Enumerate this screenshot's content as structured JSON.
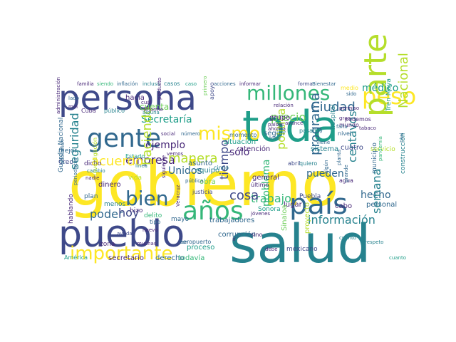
{
  "palette": {
    "yellow": "#fde725",
    "lime": "#b5de2b",
    "green": "#6ece58",
    "sea": "#35b779",
    "teal": "#1f9e89",
    "cyan": "#26828e",
    "blue": "#31688e",
    "indigo": "#3e4989",
    "violet": "#482878",
    "dark": "#440154"
  },
  "words": [
    {
      "text": "gobierno",
      "color": "#fde725"
    },
    {
      "text": "salud",
      "color": "#26828e"
    },
    {
      "text": "persona",
      "color": "#3e4989"
    },
    {
      "text": "toda",
      "color": "#1f9e89"
    },
    {
      "text": "pueblo",
      "color": "#3e4989"
    },
    {
      "text": "gente",
      "color": "#31688e"
    },
    {
      "text": "millones",
      "color": "#35b779"
    },
    {
      "text": "peso",
      "color": "#fde725"
    },
    {
      "text": "mismo",
      "color": "#fde725"
    },
    {
      "text": "años",
      "color": "#35b779"
    },
    {
      "text": "país",
      "color": "#31688e"
    },
    {
      "text": "parte",
      "color": "#b5de2b"
    },
    {
      "text": "importante",
      "color": "#fde725"
    },
    {
      "text": "bien",
      "color": "#31688e"
    },
    {
      "text": "Ciudad",
      "color": "#31688e"
    },
    {
      "text": "médico",
      "color": "#1f9e89"
    },
    {
      "text": "Secretaría",
      "color": "#1f9e89"
    },
    {
      "text": "ejemplo",
      "color": "#482878"
    },
    {
      "text": "empresa",
      "color": "#482878"
    },
    {
      "text": "manera",
      "color": "#b5de2b"
    },
    {
      "text": "haciendo",
      "color": "#b5de2b"
    },
    {
      "text": "Unidos",
      "color": "#31688e"
    },
    {
      "text": "tiempo",
      "color": "#3e4989"
    },
    {
      "text": "sólo",
      "color": "#482878"
    },
    {
      "text": "política",
      "color": "#b5de2b"
    },
    {
      "text": "precio",
      "color": "#6ece58"
    },
    {
      "text": "programa",
      "color": "#31688e"
    },
    {
      "text": "pueden",
      "color": "#31688e"
    },
    {
      "text": "centavos",
      "color": "#26828e"
    },
    {
      "text": "Nacional",
      "color": "#b5de2b"
    },
    {
      "text": "trabajo",
      "color": "#35b779"
    },
    {
      "text": "cosa",
      "color": "#3e4989"
    },
    {
      "text": "problema",
      "color": "#35b779"
    },
    {
      "text": "información",
      "color": "#26828e"
    },
    {
      "text": "hecho",
      "color": "#31688e"
    },
    {
      "text": "semana",
      "color": "#26828e"
    },
    {
      "text": "seguridad",
      "color": "#26828e"
    },
    {
      "text": "poder",
      "color": "#31688e"
    },
    {
      "text": "hoy",
      "color": "#3e4989"
    },
    {
      "text": "acuerdo",
      "color": "#fde725"
    },
    {
      "text": "cuenta",
      "color": "#6ece58"
    },
    {
      "text": "hacia",
      "color": "#482878"
    },
    {
      "text": "dinero",
      "color": "#482878"
    },
    {
      "text": "proceso",
      "color": "#1f9e89"
    },
    {
      "text": "trabajadores",
      "color": "#31688e"
    },
    {
      "text": "corrupción",
      "color": "#31688e"
    },
    {
      "text": "secretario",
      "color": "#482878"
    },
    {
      "text": "derecho",
      "color": "#31688e"
    },
    {
      "text": "todavía",
      "color": "#35b779"
    },
    {
      "text": "América",
      "color": "#1f9e89"
    },
    {
      "text": "Guardia Nacional",
      "color": "#31688e"
    },
    {
      "text": "construcción",
      "color": "#26828e"
    },
    {
      "text": "municipio",
      "color": "#31688e"
    },
    {
      "text": "servicio",
      "color": "#b5de2b"
    },
    {
      "text": "Tren Maya",
      "color": "#1f9e89"
    },
    {
      "text": "hospital",
      "color": "#26828e"
    },
    {
      "text": "general",
      "color": "#482878"
    },
    {
      "text": "atención",
      "color": "#482878"
    },
    {
      "text": "situación",
      "color": "#1f9e89"
    },
    {
      "text": "momento",
      "color": "#31688e"
    },
    {
      "text": "obra",
      "color": "#6ece58"
    },
    {
      "text": "equipo",
      "color": "#26828e"
    },
    {
      "text": "asunto",
      "color": "#31688e"
    },
    {
      "text": "sistema",
      "color": "#26828e"
    },
    {
      "text": "cuatro",
      "color": "#3e4989"
    },
    {
      "text": "grupo",
      "color": "#482878"
    },
    {
      "text": "seguir",
      "color": "#31688e"
    },
    {
      "text": "cabo",
      "color": "#482878"
    },
    {
      "text": "lugar",
      "color": "#482878"
    },
    {
      "text": "personal",
      "color": "#31688e"
    },
    {
      "text": "Sinaloa",
      "color": "#6ece58"
    },
    {
      "text": "proyecto",
      "color": "#b5de2b"
    },
    {
      "text": "mexicano",
      "color": "#3e4989"
    },
    {
      "text": "Sonora",
      "color": "#1f9e89"
    },
    {
      "text": "Puebla",
      "color": "#3e4989"
    },
    {
      "text": "zona",
      "color": "#482878"
    },
    {
      "text": "mayo",
      "color": "#31688e"
    },
    {
      "text": "delito",
      "color": "#35b779"
    },
    {
      "text": "menos",
      "color": "#26828e"
    },
    {
      "text": "hizo",
      "color": "#482878"
    },
    {
      "text": "vida",
      "color": "#b5de2b"
    },
    {
      "text": "mejor",
      "color": "#31688e"
    },
    {
      "text": "Creo",
      "color": "#3e4989"
    },
    {
      "text": "dicho",
      "color": "#482878"
    },
    {
      "text": "plan",
      "color": "#31688e"
    },
    {
      "text": "hablando",
      "color": "#482878"
    },
    {
      "text": "familia",
      "color": "#482878"
    },
    {
      "text": "siendo",
      "color": "#35b779"
    },
    {
      "text": "inflación",
      "color": "#31688e"
    },
    {
      "text": "incluso",
      "color": "#26828e"
    },
    {
      "text": "casos",
      "color": "#26828e"
    },
    {
      "text": "acciones",
      "color": "#31688e"
    },
    {
      "text": "informar",
      "color": "#482878"
    },
    {
      "text": "forma",
      "color": "#3e4989"
    },
    {
      "text": "Bienestar",
      "color": "#31688e"
    },
    {
      "text": "medio",
      "color": "#fde725"
    },
    {
      "text": "sido",
      "color": "#31688e"
    },
    {
      "text": "público",
      "color": "#26828e"
    },
    {
      "text": "Cuba",
      "color": "#482878"
    },
    {
      "text": "cinco",
      "color": "#26828e"
    },
    {
      "text": "vemos",
      "color": "#482878"
    },
    {
      "text": "abril",
      "color": "#3e4989"
    },
    {
      "text": "quiero",
      "color": "#26828e"
    },
    {
      "text": "podemos",
      "color": "#482878"
    },
    {
      "text": "mundo",
      "color": "#482878"
    },
    {
      "text": "nivel",
      "color": "#31688e"
    },
    {
      "text": "pasado",
      "color": "#26828e"
    },
    {
      "text": "avance",
      "color": "#482878"
    },
    {
      "text": "falta",
      "color": "#31688e"
    },
    {
      "text": "gran",
      "color": "#482878"
    },
    {
      "text": "último",
      "color": "#482878"
    },
    {
      "text": "sino",
      "color": "#482878"
    },
    {
      "text": "jóvenes",
      "color": "#482878"
    },
    {
      "text": "aeropuerto",
      "color": "#31688e"
    },
    {
      "text": "debe",
      "color": "#482878"
    },
    {
      "text": "muchas",
      "color": "#482878"
    },
    {
      "text": "nuevo",
      "color": "#482878"
    },
    {
      "text": "ayuda",
      "color": "#3e4989"
    },
    {
      "text": "tipo",
      "color": "#31688e"
    },
    {
      "text": "cuál",
      "color": "#482878"
    },
    {
      "text": "cambio",
      "color": "#26828e"
    },
    {
      "text": "lado",
      "color": "#31688e"
    },
    {
      "text": "mal",
      "color": "#482878"
    },
    {
      "text": "social",
      "color": "#482878"
    },
    {
      "text": "número",
      "color": "#31688e"
    },
    {
      "text": "justicia",
      "color": "#3e4989"
    },
    {
      "text": "respeto",
      "color": "#26828e"
    },
    {
      "text": "agua",
      "color": "#482878"
    },
    {
      "text": "ir",
      "color": "#482878"
    },
    {
      "text": "tan",
      "color": "#31688e"
    },
    {
      "text": "caso",
      "color": "#1f9e89"
    },
    {
      "text": "alguna",
      "color": "#26828e"
    },
    {
      "text": "Estado",
      "color": "#1f9e89"
    },
    {
      "text": "viene",
      "color": "#31688e"
    },
    {
      "text": "relación",
      "color": "#482878"
    },
    {
      "text": "ahorita",
      "color": "#482878"
    },
    {
      "text": "países",
      "color": "#482878"
    },
    {
      "text": "total",
      "color": "#31688e"
    },
    {
      "text": "línea",
      "color": "#26828e"
    },
    {
      "text": "administración",
      "color": "#482878"
    },
    {
      "text": "investigación",
      "color": "#b5de2b"
    },
    {
      "text": "población",
      "color": "#31688e"
    },
    {
      "text": "periodistas",
      "color": "#31688e"
    },
    {
      "text": "informe",
      "color": "#482878"
    },
    {
      "text": "producto",
      "color": "#482878"
    },
    {
      "text": "siguiente",
      "color": "#482878"
    },
    {
      "text": "pública",
      "color": "#31688e"
    },
    {
      "text": "primero",
      "color": "#6ece58"
    },
    {
      "text": "permiso",
      "color": "#482878"
    },
    {
      "text": "tabaco",
      "color": "#482878"
    },
    {
      "text": "casi",
      "color": "#31688e"
    },
    {
      "text": "planta",
      "color": "#31688e"
    },
    {
      "text": "Veracruz",
      "color": "#482878"
    },
    {
      "text": "apoyo",
      "color": "#3e4989"
    },
    {
      "text": "nadie",
      "color": "#482878"
    },
    {
      "text": "grande",
      "color": "#31688e"
    },
    {
      "text": "pandemia",
      "color": "#35b779"
    },
    {
      "text": "cuánto",
      "color": "#26828e"
    },
    {
      "text": "cuanto",
      "color": "#1f9e89"
    },
    {
      "text": "algún",
      "color": "#31688e"
    }
  ]
}
